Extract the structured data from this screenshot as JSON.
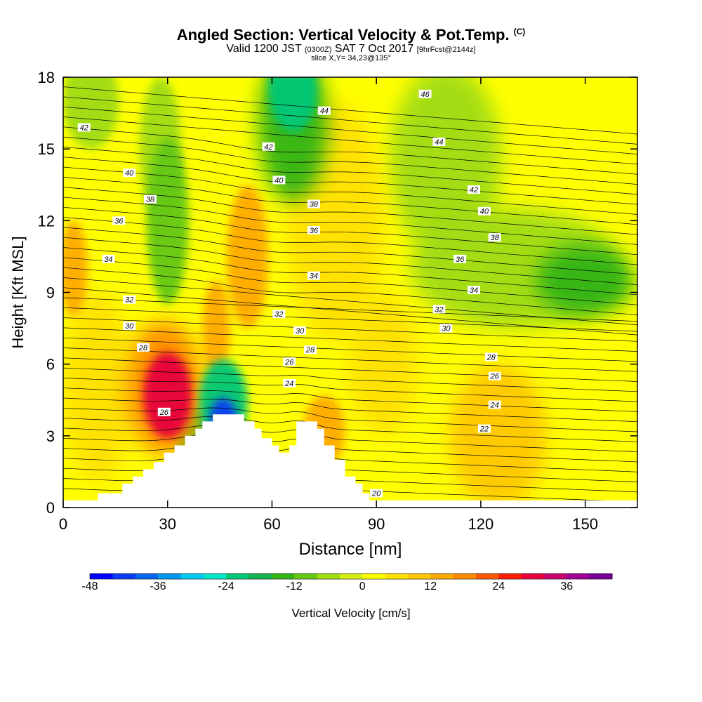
{
  "header": {
    "title_main": "Angled Section: Vertical Velocity & Pot.Temp.",
    "title_units": "(C)",
    "subtitle_part1": "Valid 1200 JST",
    "subtitle_utc": "(0300Z)",
    "subtitle_part2": "SAT 7 Oct 2017",
    "subtitle_fcst": "[9hrFcst@2144z]",
    "slice_info": "slice X,Y= 34,23@135°"
  },
  "chart_data": {
    "type": "heatmap",
    "xlabel": "Distance [nm]",
    "ylabel": "Height [Kft MSL]",
    "xlim": [
      0,
      165
    ],
    "ylim": [
      0,
      18
    ],
    "x_ticks": [
      0,
      30,
      60,
      90,
      120,
      150
    ],
    "y_ticks": [
      0,
      3,
      6,
      9,
      12,
      15,
      18
    ],
    "colorbar": {
      "title": "Vertical Velocity [cm/s]",
      "tick_values": [
        -48,
        -36,
        -24,
        -12,
        0,
        12,
        24,
        36
      ],
      "tick_labels": [
        "-48",
        "-36",
        "-24",
        "-12",
        "0",
        "12",
        "24",
        "36"
      ],
      "levels": [
        -48,
        -44,
        -40,
        -36,
        -32,
        -28,
        -24,
        -20,
        -16,
        -12,
        -8,
        -4,
        0,
        4,
        8,
        12,
        16,
        20,
        24,
        28,
        32,
        36,
        40
      ],
      "colors": [
        "#0000ff",
        "#0a3cf5",
        "#0066ee",
        "#0096f0",
        "#00c8f0",
        "#00e6c8",
        "#00c878",
        "#16b450",
        "#32b414",
        "#64c814",
        "#a0dc14",
        "#d2ee14",
        "#ffff00",
        "#ffe100",
        "#ffc800",
        "#ffaa00",
        "#ff8c00",
        "#ff5a00",
        "#ff1e00",
        "#e6003c",
        "#c8006e",
        "#a00096",
        "#780096"
      ]
    },
    "velocity_features": [
      {
        "x": 30,
        "y": 4.7,
        "value": 30,
        "rx": 7,
        "ry": 1.8
      },
      {
        "x": 29,
        "y": 5.0,
        "value": 18,
        "rx": 11,
        "ry": 2.8
      },
      {
        "x": 46,
        "y": 3.6,
        "value": -42,
        "rx": 4,
        "ry": 1.0
      },
      {
        "x": 46,
        "y": 4.4,
        "value": -24,
        "rx": 7,
        "ry": 1.8
      },
      {
        "x": 37,
        "y": 3.0,
        "value": -10,
        "rx": 5,
        "ry": 1.2
      },
      {
        "x": 66,
        "y": 17.5,
        "value": -24,
        "rx": 7,
        "ry": 1.8
      },
      {
        "x": 66,
        "y": 16.0,
        "value": -14,
        "rx": 10,
        "ry": 3.2
      },
      {
        "x": 30,
        "y": 12.0,
        "value": -12,
        "rx": 6,
        "ry": 3.5
      },
      {
        "x": 28,
        "y": 15.0,
        "value": -7,
        "rx": 6,
        "ry": 3.0
      },
      {
        "x": 130,
        "y": 10.0,
        "value": -8,
        "rx": 30,
        "ry": 2.5
      },
      {
        "x": 150,
        "y": 9.5,
        "value": -13,
        "rx": 14,
        "ry": 1.5
      },
      {
        "x": 110,
        "y": 14.5,
        "value": -6,
        "rx": 16,
        "ry": 4
      },
      {
        "x": 8,
        "y": 17.0,
        "value": -6,
        "rx": 8,
        "ry": 2
      },
      {
        "x": 3,
        "y": 10.0,
        "value": 14,
        "rx": 4,
        "ry": 2
      },
      {
        "x": 53,
        "y": 10.5,
        "value": 12,
        "rx": 6,
        "ry": 3
      },
      {
        "x": 44,
        "y": 7.5,
        "value": 14,
        "rx": 4,
        "ry": 2
      },
      {
        "x": 75,
        "y": 3.2,
        "value": 12,
        "rx": 6,
        "ry": 1.5
      },
      {
        "x": 78,
        "y": 12.0,
        "value": 6,
        "rx": 14,
        "ry": 5
      },
      {
        "x": 125,
        "y": 3.0,
        "value": 8,
        "rx": 14,
        "ry": 3
      },
      {
        "x": 10,
        "y": 5.0,
        "value": 6,
        "rx": 10,
        "ry": 4
      },
      {
        "x": 92,
        "y": 6.0,
        "value": 5,
        "rx": 10,
        "ry": 3
      }
    ],
    "isentrope_labels": [
      {
        "text": "46",
        "x": 104,
        "y": 17.3
      },
      {
        "text": "44",
        "x": 75,
        "y": 16.6
      },
      {
        "text": "44",
        "x": 108,
        "y": 15.3
      },
      {
        "text": "42",
        "x": 6,
        "y": 15.9
      },
      {
        "text": "42",
        "x": 59,
        "y": 15.1
      },
      {
        "text": "42",
        "x": 118,
        "y": 13.3
      },
      {
        "text": "40",
        "x": 19,
        "y": 14.0
      },
      {
        "text": "40",
        "x": 62,
        "y": 13.7
      },
      {
        "text": "40",
        "x": 121,
        "y": 12.4
      },
      {
        "text": "38",
        "x": 25,
        "y": 12.9
      },
      {
        "text": "38",
        "x": 72,
        "y": 12.7
      },
      {
        "text": "38",
        "x": 124,
        "y": 11.3
      },
      {
        "text": "36",
        "x": 16,
        "y": 12.0
      },
      {
        "text": "36",
        "x": 72,
        "y": 11.6
      },
      {
        "text": "36",
        "x": 114,
        "y": 10.4
      },
      {
        "text": "34",
        "x": 13,
        "y": 10.4
      },
      {
        "text": "34",
        "x": 72,
        "y": 9.7
      },
      {
        "text": "34",
        "x": 118,
        "y": 9.1
      },
      {
        "text": "32",
        "x": 19,
        "y": 8.7
      },
      {
        "text": "32",
        "x": 62,
        "y": 8.1
      },
      {
        "text": "32",
        "x": 108,
        "y": 8.3
      },
      {
        "text": "30",
        "x": 19,
        "y": 7.6
      },
      {
        "text": "30",
        "x": 68,
        "y": 7.4
      },
      {
        "text": "30",
        "x": 110,
        "y": 7.5
      },
      {
        "text": "28",
        "x": 23,
        "y": 6.7
      },
      {
        "text": "28",
        "x": 71,
        "y": 6.6
      },
      {
        "text": "28",
        "x": 123,
        "y": 6.3
      },
      {
        "text": "26",
        "x": 65,
        "y": 6.1
      },
      {
        "text": "26",
        "x": 124,
        "y": 5.5
      },
      {
        "text": "26",
        "x": 29,
        "y": 4.0
      },
      {
        "text": "24",
        "x": 65,
        "y": 5.2
      },
      {
        "text": "24",
        "x": 124,
        "y": 4.3
      },
      {
        "text": "22",
        "x": 121,
        "y": 3.3
      },
      {
        "text": "20",
        "x": 90,
        "y": 0.6
      }
    ],
    "terrain": [
      [
        0,
        0.3
      ],
      [
        10,
        0.3
      ],
      [
        10,
        0.6
      ],
      [
        17,
        0.6
      ],
      [
        17,
        1.0
      ],
      [
        20,
        1.0
      ],
      [
        20,
        1.3
      ],
      [
        23,
        1.3
      ],
      [
        23,
        1.6
      ],
      [
        26,
        1.6
      ],
      [
        26,
        1.9
      ],
      [
        29,
        1.9
      ],
      [
        29,
        2.3
      ],
      [
        32,
        2.3
      ],
      [
        32,
        2.6
      ],
      [
        35,
        2.6
      ],
      [
        35,
        3.0
      ],
      [
        38,
        3.0
      ],
      [
        38,
        3.3
      ],
      [
        40,
        3.3
      ],
      [
        40,
        3.6
      ],
      [
        43,
        3.6
      ],
      [
        43,
        3.9
      ],
      [
        52,
        3.9
      ],
      [
        52,
        3.6
      ],
      [
        55,
        3.6
      ],
      [
        55,
        3.3
      ],
      [
        57,
        3.3
      ],
      [
        57,
        2.9
      ],
      [
        60,
        2.9
      ],
      [
        60,
        2.6
      ],
      [
        62,
        2.6
      ],
      [
        62,
        2.3
      ],
      [
        65,
        2.3
      ],
      [
        65,
        2.6
      ],
      [
        67,
        2.6
      ],
      [
        67,
        3.6
      ],
      [
        73,
        3.6
      ],
      [
        73,
        3.3
      ],
      [
        75,
        3.3
      ],
      [
        75,
        2.6
      ],
      [
        78,
        2.6
      ],
      [
        78,
        2.0
      ],
      [
        81,
        2.0
      ],
      [
        81,
        1.3
      ],
      [
        84,
        1.3
      ],
      [
        84,
        1.0
      ],
      [
        86,
        1.0
      ],
      [
        86,
        0.6
      ],
      [
        88,
        0.6
      ],
      [
        88,
        0.3
      ],
      [
        165,
        0.3
      ]
    ]
  }
}
